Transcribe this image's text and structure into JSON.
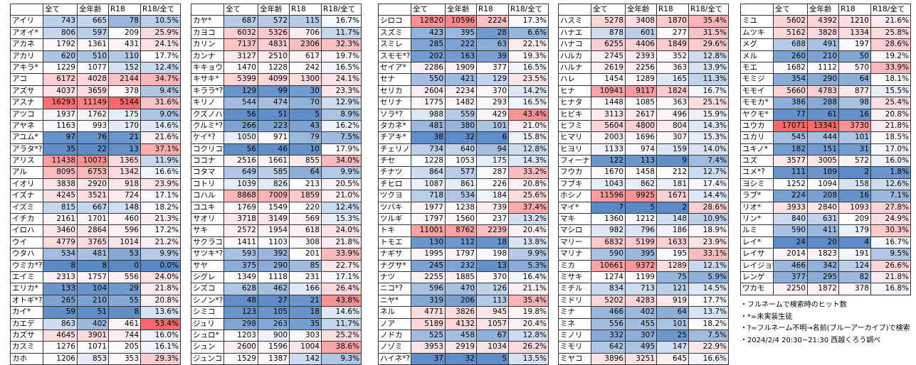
{
  "tables": [
    {
      "header": [
        "全て",
        "全年齢",
        "R18",
        "R18/全て"
      ],
      "rows": [
        [
          "アイリ",
          743,
          665,
          78,
          "10.5%"
        ],
        [
          "アオイ*",
          806,
          597,
          209,
          "25.9%"
        ],
        [
          "アカネ",
          1792,
          1361,
          431,
          "24.1%"
        ],
        [
          "アカリ",
          620,
          510,
          110,
          "17.7%"
        ],
        [
          "アキラ*",
          1229,
          1077,
          152,
          "12.4%"
        ],
        [
          "アコ",
          6172,
          4028,
          2144,
          "34.7%"
        ],
        [
          "アズサ",
          4037,
          3659,
          378,
          "9.4%"
        ],
        [
          "アスナ",
          16293,
          11149,
          5144,
          "31.6%"
        ],
        [
          "アツコ",
          1937,
          1762,
          175,
          "9.0%"
        ],
        [
          "アヤネ",
          1163,
          993,
          170,
          "14.6%"
        ],
        [
          "アユム*",
          97,
          76,
          21,
          "21.6%"
        ],
        [
          "アラタ*?",
          35,
          22,
          13,
          "37.1%"
        ],
        [
          "アリス",
          11438,
          10073,
          1365,
          "11.9%"
        ],
        [
          "アル",
          8095,
          6753,
          1342,
          "16.6%"
        ],
        [
          "イオリ",
          3838,
          2920,
          918,
          "23.9%"
        ],
        [
          "イズナ",
          4245,
          3521,
          724,
          "17.1%"
        ],
        [
          "イズミ",
          815,
          667,
          148,
          "18.2%"
        ],
        [
          "イチカ",
          2161,
          1701,
          460,
          "21.3%"
        ],
        [
          "イロハ",
          3460,
          2864,
          596,
          "17.2%"
        ],
        [
          "ウイ",
          4779,
          3765,
          1014,
          "21.2%"
        ],
        [
          "ウタハ",
          534,
          481,
          53,
          "9.9%"
        ],
        [
          "ウミカ*?",
          8,
          8,
          0,
          "0.0%"
        ],
        [
          "エイミ",
          2313,
          1757,
          556,
          "24.0%"
        ],
        [
          "エリカ*",
          133,
          104,
          29,
          "21.8%"
        ],
        [
          "オトギ*?",
          265,
          210,
          55,
          "20.8%"
        ],
        [
          "カイ*",
          59,
          51,
          8,
          "13.6%"
        ],
        [
          "カエデ",
          863,
          402,
          461,
          "53.4%"
        ],
        [
          "カズサ",
          4645,
          3901,
          744,
          "16.0%"
        ],
        [
          "カスミ",
          1276,
          1071,
          205,
          "16.1%"
        ],
        [
          "カホ",
          1206,
          853,
          353,
          "29.3%"
        ]
      ]
    },
    {
      "header": [
        "全て",
        "全年齢",
        "R18",
        "R18/全て"
      ],
      "rows": [
        [
          "カヤ*",
          687,
          572,
          115,
          "16.7%"
        ],
        [
          "カヨコ",
          6032,
          5326,
          706,
          "11.7%"
        ],
        [
          "カリン",
          7137,
          4831,
          2306,
          "32.3%"
        ],
        [
          "カンナ",
          3127,
          2510,
          617,
          "19.7%"
        ],
        [
          "キキョウ",
          1470,
          1228,
          242,
          "16.5%"
        ],
        [
          "キサキ*",
          5399,
          4099,
          1300,
          "24.1%"
        ],
        [
          "キララ*?",
          129,
          99,
          30,
          "23.3%"
        ],
        [
          "キリノ",
          544,
          474,
          70,
          "12.9%"
        ],
        [
          "クズノハ*?",
          56,
          51,
          5,
          "8.9%"
        ],
        [
          "クルミ*?",
          266,
          223,
          43,
          "16.2%"
        ],
        [
          "ケイ*?",
          1050,
          971,
          79,
          "7.5%"
        ],
        [
          "コクリコ*?",
          56,
          46,
          10,
          "17.9%"
        ],
        [
          "ココナ",
          2516,
          1661,
          855,
          "34.0%"
        ],
        [
          "コタマ",
          649,
          585,
          64,
          "9.9%"
        ],
        [
          "コトリ",
          1039,
          826,
          213,
          "20.5%"
        ],
        [
          "コハル",
          8868,
          7009,
          1859,
          "21.0%"
        ],
        [
          "コユキ",
          1769,
          1549,
          220,
          "12.4%"
        ],
        [
          "サオリ",
          3718,
          3149,
          569,
          "15.3%"
        ],
        [
          "サキ",
          2572,
          1954,
          618,
          "24.0%"
        ],
        [
          "サクラコ",
          1411,
          1103,
          308,
          "21.8%"
        ],
        [
          "サツキ*?",
          593,
          392,
          201,
          "33.9%"
        ],
        [
          "サヤ",
          375,
          290,
          85,
          "22.7%"
        ],
        [
          "シグレ",
          1349,
          1118,
          231,
          "17.1%"
        ],
        [
          "シズコ",
          628,
          462,
          166,
          "26.4%"
        ],
        [
          "シノン*?",
          48,
          27,
          21,
          "43.8%"
        ],
        [
          "シミコ",
          123,
          105,
          18,
          "14.6%"
        ],
        [
          "ジュリ",
          298,
          263,
          35,
          "11.7%"
        ],
        [
          "シュロ*",
          1203,
          900,
          303,
          "25.2%"
        ],
        [
          "シュン",
          2600,
          1596,
          1004,
          "38.6%"
        ],
        [
          "ジュンコ",
          1529,
          1387,
          142,
          "9.3%"
        ]
      ]
    },
    {
      "header": [
        "全て",
        "全年齢",
        "R18",
        "R18/全て"
      ],
      "rows": [
        [
          "シロコ",
          12820,
          10596,
          2224,
          "17.3%"
        ],
        [
          "スズミ",
          423,
          395,
          28,
          "6.6%"
        ],
        [
          "スミレ",
          285,
          222,
          63,
          "22.1%"
        ],
        [
          "スモモ*?",
          202,
          163,
          39,
          "19.3%"
        ],
        [
          "セイア*",
          2286,
          1909,
          377,
          "16.5%"
        ],
        [
          "セナ",
          550,
          421,
          129,
          "23.5%"
        ],
        [
          "セリカ",
          2604,
          2234,
          370,
          "14.2%"
        ],
        [
          "セリナ",
          1775,
          1482,
          293,
          "16.5%"
        ],
        [
          "ソラ*?",
          988,
          559,
          429,
          "43.4%"
        ],
        [
          "タカネ*",
          481,
          380,
          101,
          "21.0%"
        ],
        [
          "チアキ*",
          38,
          32,
          6,
          "15.8%"
        ],
        [
          "チェリノ",
          734,
          640,
          94,
          "12.8%"
        ],
        [
          "チセ",
          1228,
          1053,
          175,
          "14.3%"
        ],
        [
          "チナツ",
          864,
          577,
          287,
          "33.2%"
        ],
        [
          "チヒロ",
          1087,
          861,
          226,
          "20.8%"
        ],
        [
          "ツクヨ",
          718,
          534,
          184,
          "25.6%"
        ],
        [
          "ツバキ",
          1977,
          1238,
          739,
          "37.4%"
        ],
        [
          "ツルギ",
          1797,
          1560,
          237,
          "13.2%"
        ],
        [
          "トキ",
          11001,
          8762,
          2239,
          "20.4%"
        ],
        [
          "トモエ",
          130,
          112,
          18,
          "13.8%"
        ],
        [
          "ナギサ",
          1995,
          1797,
          198,
          "9.9%"
        ],
        [
          "ナグサ*",
          245,
          232,
          13,
          "5.3%"
        ],
        [
          "ナツ",
          2255,
          1885,
          370,
          "16.4%"
        ],
        [
          "ニコ*?",
          596,
          470,
          126,
          "21.1%"
        ],
        [
          "ニヤ*",
          319,
          206,
          113,
          "35.4%"
        ],
        [
          "ネル",
          4771,
          3826,
          945,
          "19.8%"
        ],
        [
          "ノア",
          5189,
          4132,
          1057,
          "20.4%"
        ],
        [
          "ノドカ",
          525,
          458,
          67,
          "12.8%"
        ],
        [
          "ノゾミ",
          3953,
          2919,
          1034,
          "26.2%"
        ],
        [
          "ハイネ*?",
          37,
          32,
          5,
          "13.5%"
        ]
      ]
    },
    {
      "header": [
        "全て",
        "全年齢",
        "R18",
        "R18/全て"
      ],
      "rows": [
        [
          "ハスミ",
          5278,
          3408,
          1870,
          "35.4%"
        ],
        [
          "ハナエ",
          878,
          601,
          277,
          "31.5%"
        ],
        [
          "ハナコ",
          6255,
          4406,
          1849,
          "29.6%"
        ],
        [
          "ハルカ",
          2745,
          2393,
          352,
          "12.8%"
        ],
        [
          "ハルナ",
          2619,
          2256,
          363,
          "13.9%"
        ],
        [
          "ハレ",
          1454,
          1289,
          165,
          "11.3%"
        ],
        [
          "ヒナ",
          10941,
          9117,
          1824,
          "16.7%"
        ],
        [
          "ヒナタ",
          1448,
          1085,
          363,
          "25.1%"
        ],
        [
          "ヒビキ",
          3113,
          2617,
          496,
          "15.9%"
        ],
        [
          "ヒフミ",
          5604,
          4800,
          804,
          "14.3%"
        ],
        [
          "ヒマリ",
          2003,
          1696,
          307,
          "15.3%"
        ],
        [
          "ヒヨリ",
          1133,
          974,
          159,
          "14.0%"
        ],
        [
          "フィーナ",
          122,
          113,
          9,
          "7.4%"
        ],
        [
          "フウカ",
          1670,
          1458,
          212,
          "12.7%"
        ],
        [
          "フブキ",
          1043,
          862,
          181,
          "17.4%"
        ],
        [
          "ホシノ",
          11596,
          9925,
          1671,
          "14.4%"
        ],
        [
          "マイ*",
          7,
          5,
          2,
          "28.6%"
        ],
        [
          "マキ",
          1360,
          1212,
          148,
          "10.9%"
        ],
        [
          "マシロ",
          982,
          796,
          186,
          "18.9%"
        ],
        [
          "マリー",
          6832,
          5199,
          1633,
          "23.9%"
        ],
        [
          "マリナ",
          590,
          395,
          195,
          "33.1%"
        ],
        [
          "ミカ",
          10661,
          9372,
          1289,
          "12.1%"
        ],
        [
          "ミサキ",
          1274,
          1199,
          75,
          "5.9%"
        ],
        [
          "ミチル",
          834,
          713,
          121,
          "14.5%"
        ],
        [
          "ミドリ",
          5202,
          4283,
          919,
          "17.7%"
        ],
        [
          "ミナ",
          466,
          402,
          64,
          "13.7%"
        ],
        [
          "ミネ",
          556,
          455,
          101,
          "18.2%"
        ],
        [
          "ミノリ",
          332,
          307,
          25,
          "7.5%"
        ],
        [
          "ミモリ",
          642,
          495,
          147,
          "22.9%"
        ],
        [
          "ミヤコ",
          3896,
          3251,
          645,
          "16.6%"
        ]
      ]
    },
    {
      "header": [
        "全て",
        "全年齢",
        "R18",
        "R18/全て"
      ],
      "rows": [
        [
          "ミユ",
          5602,
          4392,
          1210,
          "21.6%"
        ],
        [
          "ムツキ",
          5162,
          3828,
          1334,
          "25.8%"
        ],
        [
          "メグ",
          688,
          491,
          197,
          "28.6%"
        ],
        [
          "メル",
          260,
          210,
          50,
          "19.2%"
        ],
        [
          "モエ",
          1682,
          1112,
          570,
          "33.9%"
        ],
        [
          "モミジ",
          354,
          290,
          64,
          "18.1%"
        ],
        [
          "モモイ",
          5660,
          4783,
          877,
          "15.5%"
        ],
        [
          "モモカ*",
          386,
          288,
          98,
          "25.4%"
        ],
        [
          "ヤクモ*",
          77,
          61,
          16,
          "20.8%"
        ],
        [
          "ユウカ",
          17071,
          13341,
          3730,
          "21.8%"
        ],
        [
          "ユカリ",
          545,
          444,
          101,
          "18.5%"
        ],
        [
          "ユキノ*",
          182,
          151,
          31,
          "17.0%"
        ],
        [
          "ユズ",
          3577,
          3005,
          572,
          "16.0%"
        ],
        [
          "ユメ*?",
          111,
          109,
          2,
          "1.8%"
        ],
        [
          "ヨシミ",
          1252,
          1094,
          158,
          "12.6%"
        ],
        [
          "ラブ*",
          224,
          208,
          16,
          "7.1%"
        ],
        [
          "リオ*",
          3933,
          2840,
          1093,
          "27.8%"
        ],
        [
          "リン*",
          840,
          631,
          209,
          "24.9%"
        ],
        [
          "ルミ",
          590,
          411,
          179,
          "30.3%"
        ],
        [
          "レイ*",
          24,
          20,
          4,
          "16.7%"
        ],
        [
          "レイサ",
          2014,
          1823,
          191,
          "9.5%"
        ],
        [
          "レイジョ*",
          466,
          342,
          124,
          "26.6%"
        ],
        [
          "レンゲ",
          377,
          295,
          82,
          "21.8%"
        ],
        [
          "ワカモ",
          2250,
          1872,
          378,
          "16.8%"
        ]
      ]
    }
  ],
  "notes": [
    "・フルネームで検索時のヒット数",
    "・*=未実装生徒",
    "・?=フルネーム不明→名前(ブルーアーカイブ)で検索",
    "・2024/2/4 20:30~21:30 西越くろう調べ"
  ]
}
